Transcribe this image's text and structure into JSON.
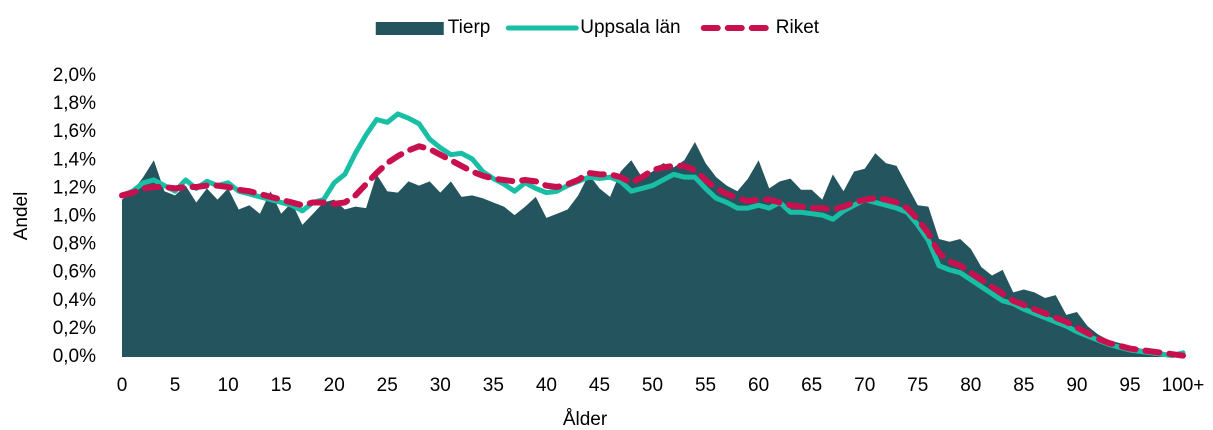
{
  "chart_data": {
    "type": "area-line",
    "x_label": "Ålder",
    "y_label": "Andel",
    "legend": "top",
    "grid": false,
    "categories": [
      "0",
      null,
      null,
      null,
      null,
      "5",
      null,
      null,
      null,
      null,
      "10",
      null,
      null,
      null,
      null,
      "15",
      null,
      null,
      null,
      null,
      "20",
      null,
      null,
      null,
      null,
      "25",
      null,
      null,
      null,
      null,
      "30",
      null,
      null,
      null,
      null,
      "35",
      null,
      null,
      null,
      null,
      "40",
      null,
      null,
      null,
      null,
      "45",
      null,
      null,
      null,
      null,
      "50",
      null,
      null,
      null,
      null,
      "55",
      null,
      null,
      null,
      null,
      "60",
      null,
      null,
      null,
      null,
      "65",
      null,
      null,
      null,
      null,
      "70",
      null,
      null,
      null,
      null,
      "75",
      null,
      null,
      null,
      null,
      "80",
      null,
      null,
      null,
      null,
      "85",
      null,
      null,
      null,
      null,
      "90",
      null,
      null,
      null,
      null,
      "95",
      null,
      null,
      null,
      null,
      "100+"
    ],
    "ylim": [
      0,
      2.0
    ],
    "yticks": [
      {
        "value": 0.0,
        "label": "0,0%"
      },
      {
        "value": 0.2,
        "label": "0,2%"
      },
      {
        "value": 0.4,
        "label": "0,4%"
      },
      {
        "value": 0.6,
        "label": "0,6%"
      },
      {
        "value": 0.8,
        "label": "0,8%"
      },
      {
        "value": 1.0,
        "label": "1,0%"
      },
      {
        "value": 1.2,
        "label": "1,2%"
      },
      {
        "value": 1.4,
        "label": "1,4%"
      },
      {
        "value": 1.6,
        "label": "1,6%"
      },
      {
        "value": 1.8,
        "label": "1,8%"
      },
      {
        "value": 2.0,
        "label": "2,0%"
      }
    ],
    "series": [
      {
        "name": "Tierp",
        "kind": "area",
        "color": "#24555e",
        "values": [
          1.12,
          1.18,
          1.28,
          1.4,
          1.18,
          1.15,
          1.22,
          1.1,
          1.2,
          1.12,
          1.2,
          1.05,
          1.08,
          1.02,
          1.18,
          1.02,
          1.1,
          0.94,
          1.02,
          1.1,
          1.12,
          1.05,
          1.07,
          1.06,
          1.3,
          1.18,
          1.17,
          1.25,
          1.22,
          1.25,
          1.17,
          1.25,
          1.14,
          1.15,
          1.13,
          1.1,
          1.07,
          1.01,
          1.07,
          1.14,
          0.99,
          1.02,
          1.05,
          1.15,
          1.3,
          1.2,
          1.14,
          1.32,
          1.4,
          1.28,
          1.32,
          1.38,
          1.35,
          1.4,
          1.53,
          1.38,
          1.28,
          1.22,
          1.18,
          1.27,
          1.4,
          1.2,
          1.25,
          1.27,
          1.19,
          1.19,
          1.12,
          1.3,
          1.18,
          1.32,
          1.34,
          1.45,
          1.38,
          1.36,
          1.22,
          1.08,
          1.07,
          0.84,
          0.82,
          0.84,
          0.77,
          0.64,
          0.58,
          0.62,
          0.46,
          0.48,
          0.46,
          0.42,
          0.44,
          0.3,
          0.32,
          0.22,
          0.16,
          0.12,
          0.1,
          0.08,
          0.06,
          0.05,
          0.04,
          0.02,
          0.02
        ]
      },
      {
        "name": "Uppsala län",
        "kind": "line",
        "color": "#19bfa5",
        "values": [
          1.15,
          1.18,
          1.24,
          1.26,
          1.22,
          1.18,
          1.26,
          1.2,
          1.25,
          1.22,
          1.24,
          1.18,
          1.16,
          1.14,
          1.12,
          1.1,
          1.08,
          1.04,
          1.1,
          1.12,
          1.24,
          1.3,
          1.45,
          1.58,
          1.69,
          1.67,
          1.73,
          1.7,
          1.66,
          1.55,
          1.49,
          1.44,
          1.45,
          1.41,
          1.32,
          1.27,
          1.23,
          1.18,
          1.24,
          1.2,
          1.17,
          1.18,
          1.22,
          1.25,
          1.28,
          1.27,
          1.28,
          1.25,
          1.18,
          1.2,
          1.22,
          1.26,
          1.3,
          1.28,
          1.28,
          1.2,
          1.13,
          1.1,
          1.06,
          1.06,
          1.08,
          1.06,
          1.1,
          1.03,
          1.03,
          1.02,
          1.01,
          0.98,
          1.04,
          1.08,
          1.12,
          1.1,
          1.08,
          1.06,
          1.03,
          0.94,
          0.83,
          0.65,
          0.62,
          0.6,
          0.55,
          0.5,
          0.45,
          0.4,
          0.38,
          0.34,
          0.31,
          0.28,
          0.25,
          0.22,
          0.18,
          0.15,
          0.12,
          0.09,
          0.07,
          0.05,
          0.04,
          0.03,
          0.02,
          0.01,
          0.03
        ]
      },
      {
        "name": "Riket",
        "kind": "dashed",
        "color": "#c8104e",
        "values": [
          1.15,
          1.17,
          1.2,
          1.21,
          1.21,
          1.2,
          1.21,
          1.21,
          1.22,
          1.22,
          1.21,
          1.19,
          1.18,
          1.16,
          1.14,
          1.12,
          1.1,
          1.08,
          1.1,
          1.1,
          1.09,
          1.1,
          1.15,
          1.23,
          1.31,
          1.38,
          1.43,
          1.47,
          1.5,
          1.48,
          1.44,
          1.4,
          1.36,
          1.32,
          1.29,
          1.27,
          1.26,
          1.25,
          1.26,
          1.25,
          1.22,
          1.21,
          1.23,
          1.26,
          1.31,
          1.3,
          1.3,
          1.28,
          1.24,
          1.28,
          1.33,
          1.35,
          1.36,
          1.36,
          1.33,
          1.26,
          1.2,
          1.16,
          1.13,
          1.11,
          1.12,
          1.12,
          1.1,
          1.08,
          1.07,
          1.06,
          1.06,
          1.05,
          1.07,
          1.1,
          1.12,
          1.13,
          1.12,
          1.1,
          1.06,
          0.98,
          0.88,
          0.74,
          0.68,
          0.65,
          0.6,
          0.55,
          0.5,
          0.45,
          0.4,
          0.37,
          0.34,
          0.31,
          0.28,
          0.25,
          0.21,
          0.17,
          0.13,
          0.1,
          0.08,
          0.06,
          0.05,
          0.04,
          0.03,
          0.02,
          0.01
        ]
      }
    ]
  }
}
